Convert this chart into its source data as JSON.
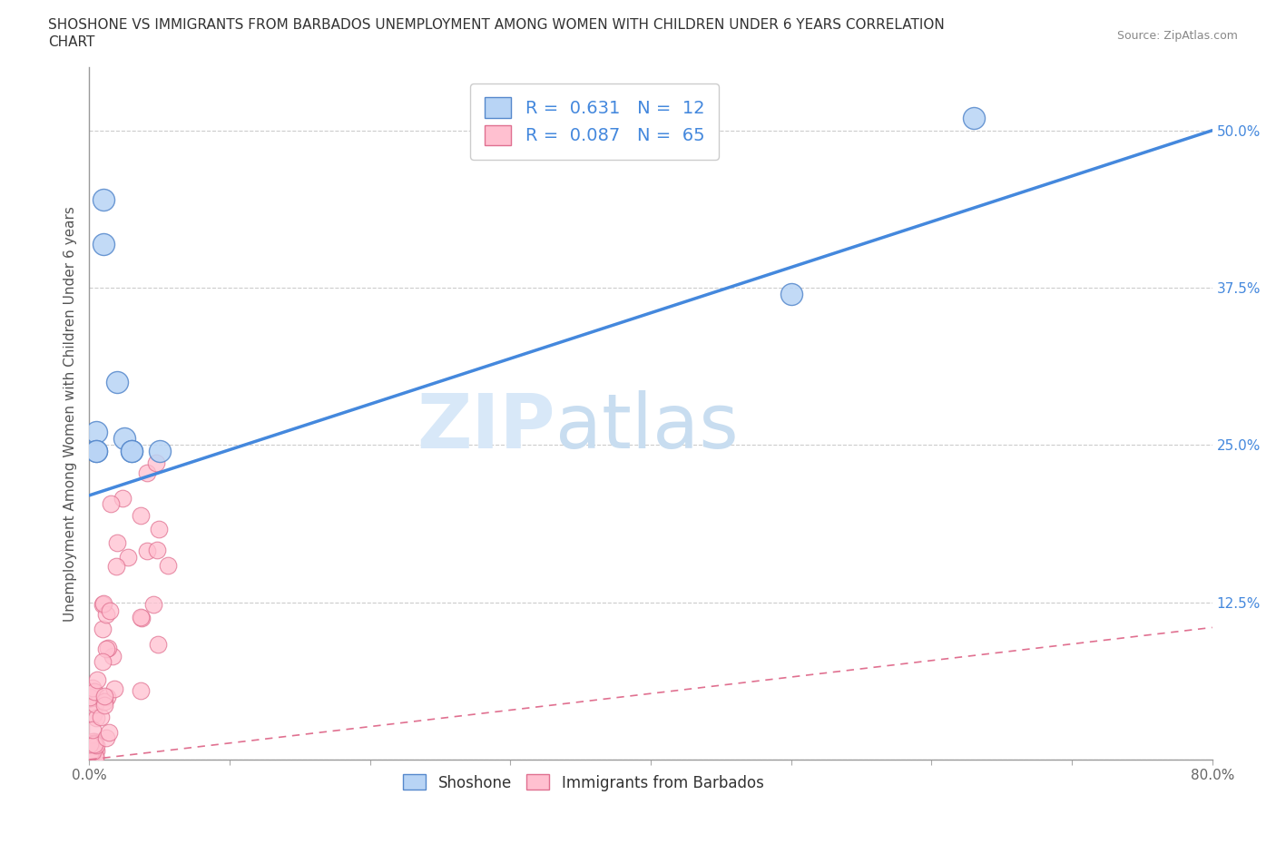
{
  "title_line1": "SHOSHONE VS IMMIGRANTS FROM BARBADOS UNEMPLOYMENT AMONG WOMEN WITH CHILDREN UNDER 6 YEARS CORRELATION",
  "title_line2": "CHART",
  "source": "Source: ZipAtlas.com",
  "ylabel": "Unemployment Among Women with Children Under 6 years",
  "xlim": [
    0.0,
    0.8
  ],
  "ylim": [
    0.0,
    0.55
  ],
  "xticks": [
    0.0,
    0.1,
    0.2,
    0.3,
    0.4,
    0.5,
    0.6,
    0.7,
    0.8
  ],
  "xticklabels": [
    "0.0%",
    "",
    "",
    "",
    "",
    "",
    "",
    "",
    "80.0%"
  ],
  "yticks": [
    0.0,
    0.125,
    0.25,
    0.375,
    0.5
  ],
  "yticklabels": [
    "",
    "12.5%",
    "25.0%",
    "37.5%",
    "50.0%"
  ],
  "shoshone_R": 0.631,
  "shoshone_N": 12,
  "barbados_R": 0.087,
  "barbados_N": 65,
  "shoshone_color": "#b8d4f5",
  "shoshone_edge": "#5588cc",
  "barbados_color": "#ffc0d0",
  "barbados_edge": "#e07090",
  "shoshone_line_color": "#4488dd",
  "barbados_line_color": "#e07090",
  "watermark_color": "#d8e8f8",
  "shoshone_x": [
    0.01,
    0.01,
    0.02,
    0.025,
    0.03,
    0.03,
    0.05,
    0.63,
    0.5,
    0.005,
    0.005,
    0.005
  ],
  "shoshone_y": [
    0.445,
    0.41,
    0.3,
    0.255,
    0.245,
    0.245,
    0.245,
    0.51,
    0.37,
    0.26,
    0.245,
    0.245
  ],
  "shoshone_line_x": [
    0.0,
    0.8
  ],
  "shoshone_line_y": [
    0.21,
    0.5
  ],
  "barbados_line_x": [
    0.0,
    0.8
  ],
  "barbados_line_y": [
    0.0,
    0.105
  ]
}
